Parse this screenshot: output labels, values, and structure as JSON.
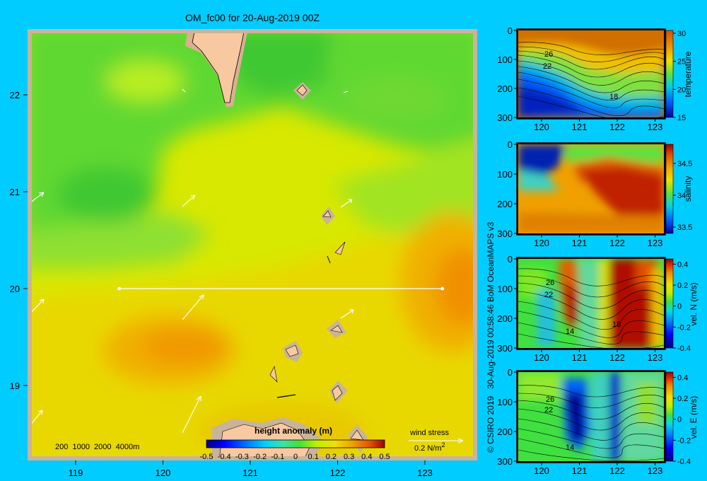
{
  "title": "OM_fc00 for 20-Aug-2019 00Z",
  "credit": "© CSIRO 2019   30-Aug-2019 00:58:46 BoM OceanMAPS v3",
  "map": {
    "lon_ticks": [
      "119",
      "120",
      "121",
      "122",
      "123"
    ],
    "lat_ticks": [
      "22",
      "21",
      "20",
      "19"
    ],
    "depth_legend": "200  1000  2000  4000m",
    "wind_label": "wind stress",
    "wind_unit": "0.2 N/m",
    "wind_unit_sup": "2",
    "section": {
      "lat": 20,
      "lon_start": 119.5,
      "lon_end": 123.2
    }
  },
  "colorbar": {
    "label": "height anomaly (m)",
    "ticks": [
      "-0.5",
      "-0.4",
      "-0.3",
      "-0.2",
      "-0.1",
      "0",
      "0.1",
      "0.2",
      "0.3",
      "0.4",
      "0.5"
    ]
  },
  "chart_data": [
    {
      "type": "heatmap",
      "title": "OM_fc00 for 20-Aug-2019 00Z",
      "variable": "height anomaly (m)",
      "x_ticks": [
        119,
        120,
        121,
        122,
        123
      ],
      "y_ticks": [
        19,
        20,
        21,
        22
      ],
      "value_range": [
        -0.5,
        0.5
      ],
      "features": [
        {
          "name": "low",
          "lon": 119.4,
          "lat": 21.0,
          "value": 0.0
        },
        {
          "name": "low",
          "lon": 121.6,
          "lat": 22.3,
          "value": 0.0
        },
        {
          "name": "high",
          "lon": 123.3,
          "lat": 20.1,
          "value": 0.3
        },
        {
          "name": "high",
          "lon": 120.2,
          "lat": 19.3,
          "value": 0.25
        }
      ]
    },
    {
      "type": "heatmap",
      "variable": "temperature",
      "x_ticks": [
        "120",
        "121",
        "122",
        "123"
      ],
      "y_ticks": [
        "0",
        "100",
        "200",
        "300"
      ],
      "colorbar_ticks": [
        "30",
        "25",
        "20",
        "15"
      ],
      "value_range": [
        15,
        30.5
      ],
      "contour_labels": [
        "26",
        "22",
        "18"
      ]
    },
    {
      "type": "heatmap",
      "variable": "salinity",
      "x_ticks": [
        "120",
        "121",
        "122",
        "123"
      ],
      "y_ticks": [
        "0",
        "100",
        "200",
        "300"
      ],
      "colorbar_ticks": [
        "34.5",
        "34",
        "33.5"
      ],
      "value_range": [
        33.4,
        34.8
      ]
    },
    {
      "type": "heatmap",
      "variable": "vel. N (m/s)",
      "x_ticks": [
        "120",
        "121",
        "122",
        "123"
      ],
      "y_ticks": [
        "0",
        "100",
        "200",
        "300"
      ],
      "colorbar_ticks": [
        "0.4",
        "0.2",
        "0",
        "-0.2",
        "-0.4"
      ],
      "value_range": [
        -0.4,
        0.45
      ],
      "contour_labels": [
        "26",
        "22",
        "14",
        "18"
      ]
    },
    {
      "type": "heatmap",
      "variable": "vel. E (m/s)",
      "x_ticks": [
        "120",
        "121",
        "122",
        "123"
      ],
      "y_ticks": [
        "0",
        "100",
        "200",
        "300"
      ],
      "colorbar_ticks": [
        "0.4",
        "0.2",
        "0",
        "-0.2",
        "-0.4"
      ],
      "value_range": [
        -0.4,
        0.45
      ],
      "contour_labels": [
        "26",
        "22",
        "14"
      ]
    }
  ]
}
